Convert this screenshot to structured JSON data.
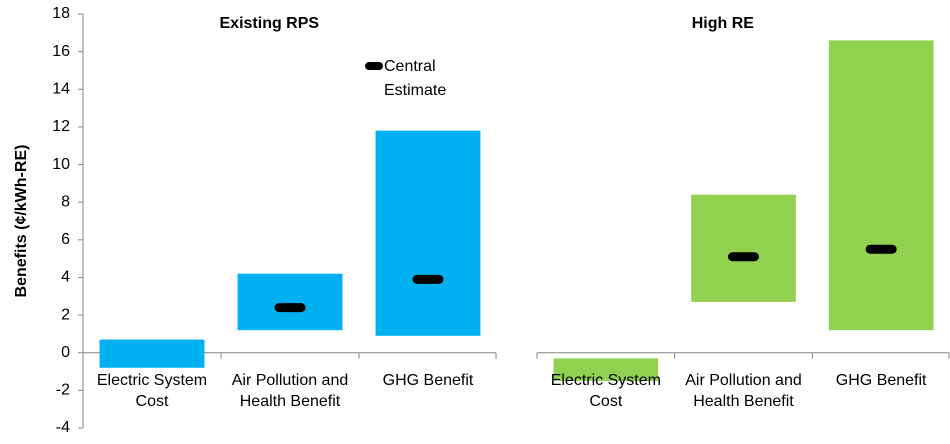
{
  "chart_data": {
    "type": "range-bar",
    "ylabel": "Benefits (¢/kWh-RE)",
    "ylim": [
      -4,
      18
    ],
    "yticks": [
      -4,
      -2,
      0,
      2,
      4,
      6,
      8,
      10,
      12,
      14,
      16,
      18
    ],
    "legend": {
      "name": "Central Estimate",
      "color": "#000000"
    },
    "panels": [
      {
        "title": "Existing RPS",
        "color": "#00b0f0",
        "categories": [
          "Electric System Cost",
          "Air Pollution and Health Benefit",
          "GHG Benefit"
        ],
        "low": [
          -0.8,
          1.2,
          0.9
        ],
        "high": [
          0.7,
          4.2,
          11.8
        ],
        "central": [
          null,
          2.4,
          3.9
        ]
      },
      {
        "title": "High RE",
        "color": "#92d050",
        "categories": [
          "Electric System Cost",
          "Air Pollution and Health Benefit",
          "GHG Benefit"
        ],
        "low": [
          -1.5,
          2.7,
          1.2
        ],
        "high": [
          -0.3,
          8.4,
          16.6
        ],
        "central": [
          null,
          5.1,
          5.5
        ]
      }
    ]
  }
}
